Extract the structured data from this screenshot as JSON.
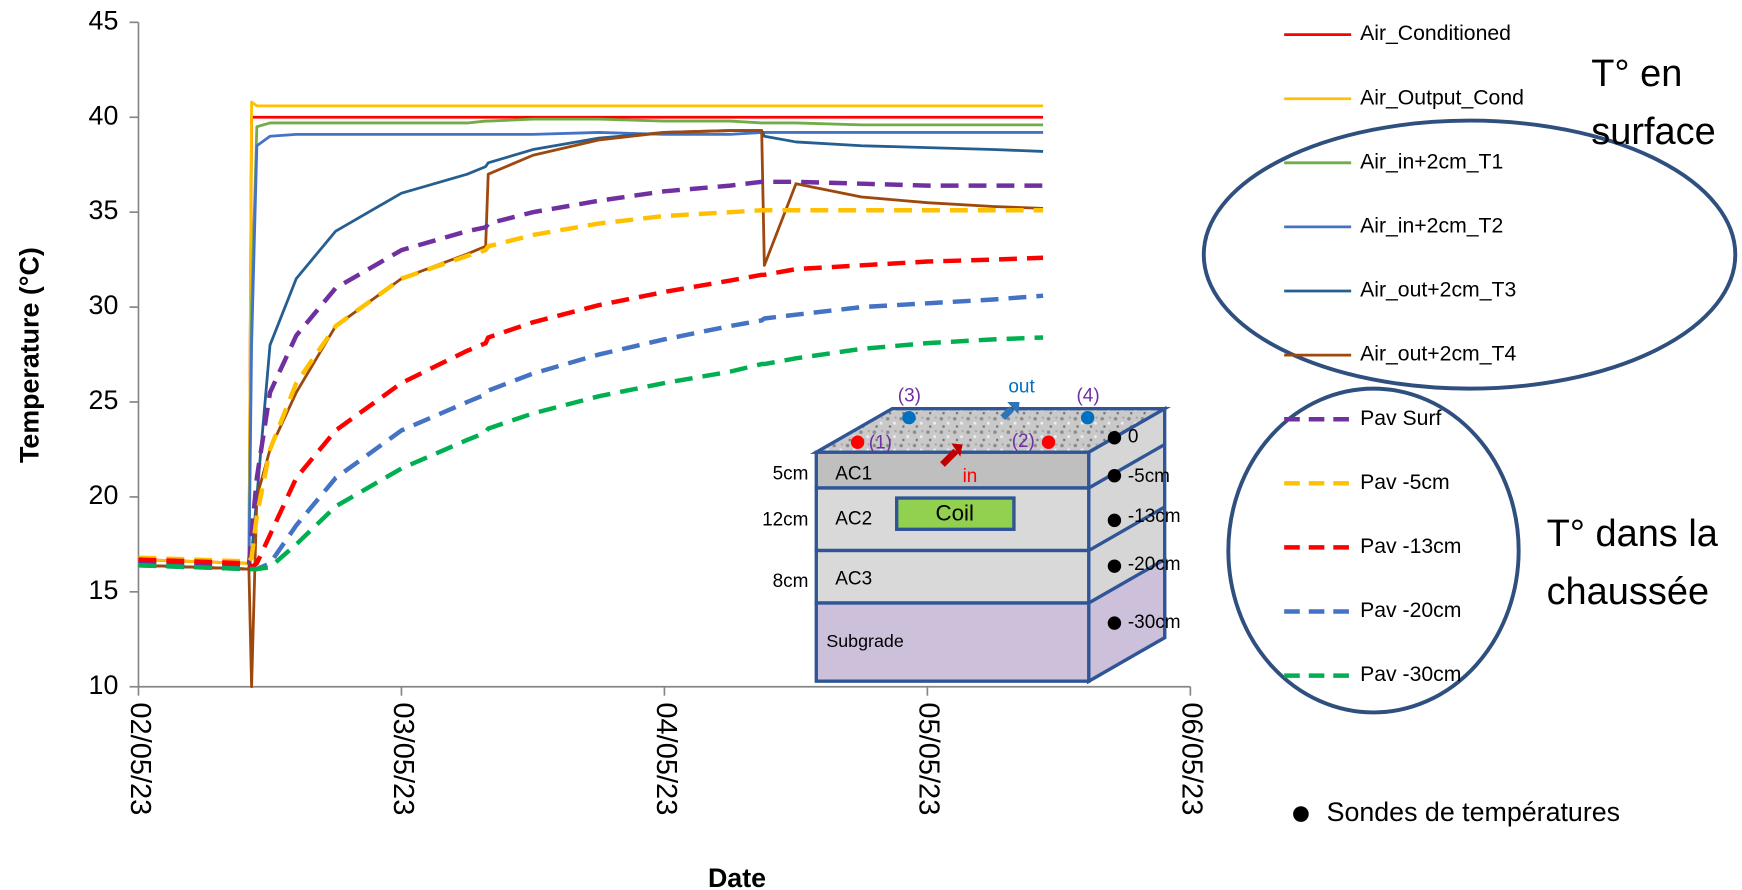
{
  "chart_data": {
    "type": "line",
    "ylabel": "Temperature (°C)",
    "xlabel": "Date",
    "xlim": [
      0,
      4
    ],
    "xticks": [
      {
        "value": 0,
        "label": "02/05/23"
      },
      {
        "value": 1,
        "label": "03/05/23"
      },
      {
        "value": 2,
        "label": "04/05/23"
      },
      {
        "value": 3,
        "label": "05/05/23"
      },
      {
        "value": 4,
        "label": "06/05/23"
      }
    ],
    "ylim": [
      10,
      45
    ],
    "yticks": [
      10,
      15,
      20,
      25,
      30,
      35,
      40,
      45
    ],
    "grid": false,
    "legend": "right",
    "x": [
      0,
      0.42,
      0.43,
      0.45,
      0.5,
      0.6,
      0.75,
      1,
      1.25,
      1.32,
      1.33,
      1.5,
      1.75,
      2,
      2.25,
      2.37,
      2.38,
      2.5,
      2.75,
      3,
      3.25,
      3.44
    ],
    "series": [
      {
        "name": "Air_Conditioned",
        "color": "#ff0000",
        "dash": false,
        "values": [
          16.7,
          16.5,
          40,
          40,
          40,
          40,
          40,
          40,
          40,
          40,
          40,
          40,
          40,
          40,
          40,
          40,
          40,
          40,
          40,
          40,
          40,
          40
        ]
      },
      {
        "name": "Air_Output_Cond",
        "color": "#ffc000",
        "dash": false,
        "values": [
          16.7,
          16.5,
          40.8,
          40.6,
          40.6,
          40.6,
          40.6,
          40.6,
          40.6,
          40.6,
          40.6,
          40.6,
          40.6,
          40.6,
          40.6,
          40.6,
          40.6,
          40.6,
          40.6,
          40.6,
          40.6,
          40.6
        ]
      },
      {
        "name": "Air_in+2cm_T1",
        "color": "#70ad47",
        "dash": false,
        "values": [
          16.4,
          16.2,
          30,
          39.5,
          39.7,
          39.7,
          39.7,
          39.7,
          39.7,
          39.8,
          39.8,
          39.9,
          39.9,
          39.8,
          39.8,
          39.7,
          39.7,
          39.7,
          39.6,
          39.6,
          39.6,
          39.6
        ]
      },
      {
        "name": "Air_in+2cm_T2",
        "color": "#4472c4",
        "dash": false,
        "values": [
          16.4,
          16.2,
          28,
          38.5,
          39,
          39.1,
          39.1,
          39.1,
          39.1,
          39.1,
          39.1,
          39.1,
          39.2,
          39.1,
          39.1,
          39.2,
          39.2,
          39.2,
          39.2,
          39.2,
          39.2,
          39.2
        ]
      },
      {
        "name": "Air_out+2cm_T3",
        "color": "#255e91",
        "dash": false,
        "values": [
          16.4,
          16.2,
          17,
          20,
          28,
          31.5,
          34,
          36,
          37,
          37.4,
          37.6,
          38.3,
          38.9,
          39.2,
          39.3,
          39.3,
          39,
          38.7,
          38.5,
          38.4,
          38.3,
          38.2
        ]
      },
      {
        "name": "Air_out+2cm_T4",
        "color": "#9e480e",
        "dash": false,
        "values": [
          16.4,
          16.2,
          10,
          20,
          22.5,
          25.5,
          29,
          31.5,
          32.8,
          33.2,
          37,
          38,
          38.8,
          39.2,
          39.3,
          39.3,
          32.2,
          36.5,
          35.8,
          35.5,
          35.3,
          35.2
        ]
      },
      {
        "name": "Pav Surf",
        "color": "#7030a0",
        "dash": true,
        "values": [
          16.6,
          16.4,
          18,
          21,
          25.5,
          28.5,
          31,
          33,
          34,
          34.2,
          34.4,
          35,
          35.6,
          36.1,
          36.4,
          36.6,
          36.6,
          36.6,
          36.5,
          36.4,
          36.4,
          36.4
        ]
      },
      {
        "name": "Pav -5cm",
        "color": "#ffc000",
        "dash": true,
        "values": [
          16.8,
          16.6,
          16.8,
          19,
          22.5,
          26,
          29,
          31.5,
          32.7,
          33,
          33.2,
          33.8,
          34.4,
          34.8,
          35,
          35.1,
          35.1,
          35.1,
          35.1,
          35.1,
          35.1,
          35.1
        ]
      },
      {
        "name": "Pav -13cm",
        "color": "#ff0000",
        "dash": true,
        "values": [
          16.7,
          16.5,
          16.3,
          16.5,
          18,
          21,
          23.5,
          26,
          27.7,
          28.1,
          28.4,
          29.2,
          30.1,
          30.8,
          31.4,
          31.7,
          31.7,
          32,
          32.2,
          32.4,
          32.5,
          32.6
        ]
      },
      {
        "name": "Pav -20cm",
        "color": "#4472c4",
        "dash": true,
        "values": [
          16.4,
          16.2,
          16.2,
          16.2,
          16.5,
          18.5,
          21,
          23.5,
          25,
          25.4,
          25.6,
          26.5,
          27.5,
          28.3,
          29,
          29.3,
          29.4,
          29.6,
          30,
          30.2,
          30.4,
          30.6
        ]
      },
      {
        "name": "Pav -30cm",
        "color": "#00b050",
        "dash": true,
        "values": [
          16.4,
          16.2,
          16.2,
          16.2,
          16.3,
          17.5,
          19.5,
          21.5,
          23,
          23.4,
          23.6,
          24.4,
          25.3,
          26,
          26.6,
          27,
          27,
          27.3,
          27.8,
          28.1,
          28.3,
          28.4
        ]
      }
    ],
    "annotations": [
      "T° en",
      "surface",
      "T° dans la",
      "chaussée",
      "Sondes de températures"
    ]
  },
  "inset": {
    "layers": [
      "AC1",
      "AC2",
      "AC3",
      "Subgrade"
    ],
    "thickness": [
      "5cm",
      "12cm",
      "8cm"
    ],
    "depths": [
      "0",
      "-5cm",
      "-13cm",
      "-20cm",
      "-30cm"
    ],
    "coil": "Coil",
    "sensors": [
      "(1)",
      "(2)",
      "(3)",
      "(4)"
    ],
    "flow": [
      "in",
      "out"
    ]
  }
}
